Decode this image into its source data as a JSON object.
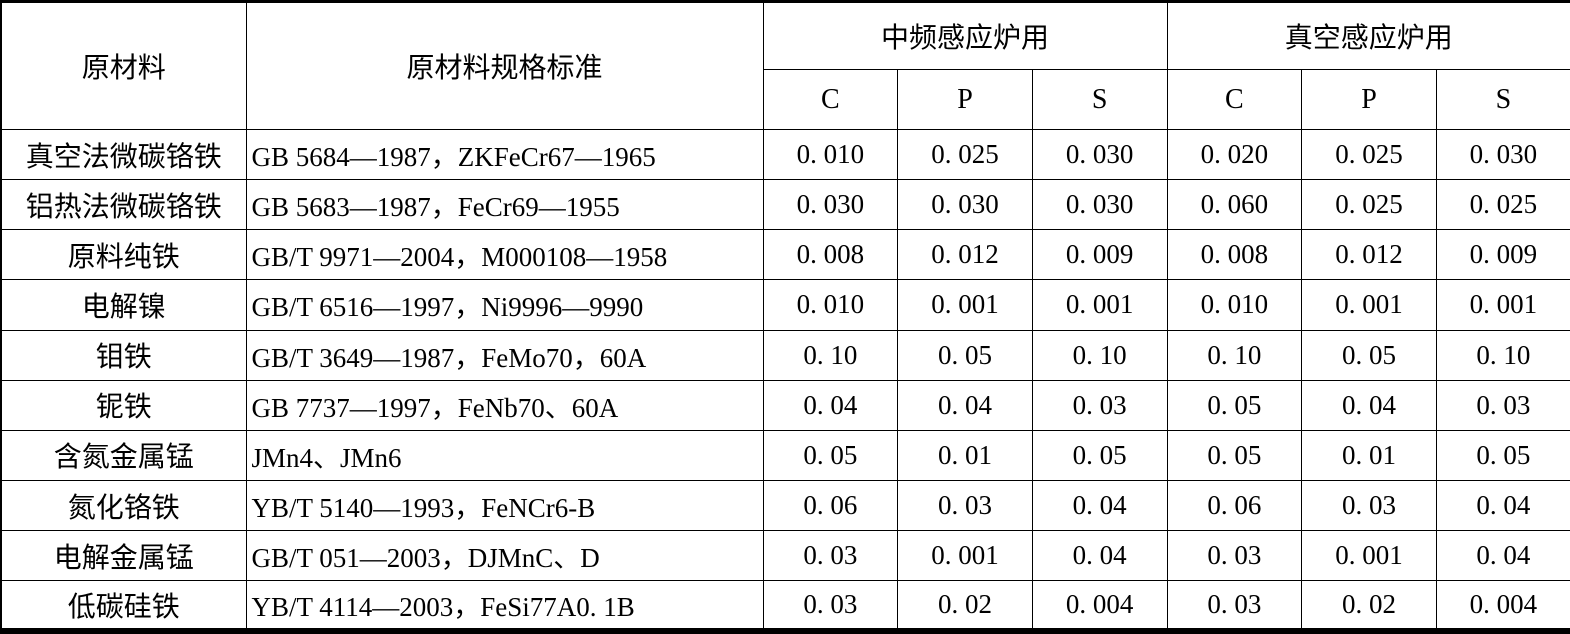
{
  "table": {
    "header": {
      "col_material": "原材料",
      "col_spec": "原材料规格标准",
      "group_mid_freq": "中频感应炉用",
      "group_vacuum": "真空感应炉用",
      "sub_columns": [
        "C",
        "P",
        "S"
      ]
    },
    "rows": [
      {
        "material": "真空法微碳铬铁",
        "spec": "GB 5684—1987，ZKFeCr67—1965",
        "mid": [
          "0. 010",
          "0. 025",
          "0. 030"
        ],
        "vac": [
          "0. 020",
          "0. 025",
          "0. 030"
        ]
      },
      {
        "material": "铝热法微碳铬铁",
        "spec": "GB 5683—1987，FeCr69—1955",
        "mid": [
          "0. 030",
          "0. 030",
          "0. 030"
        ],
        "vac": [
          "0. 060",
          "0. 025",
          "0. 025"
        ]
      },
      {
        "material": "原料纯铁",
        "spec": "GB/T 9971—2004，M000108—1958",
        "mid": [
          "0. 008",
          "0. 012",
          "0. 009"
        ],
        "vac": [
          "0. 008",
          "0. 012",
          "0. 009"
        ]
      },
      {
        "material": "电解镍",
        "spec": "GB/T 6516—1997，Ni9996—9990",
        "mid": [
          "0. 010",
          "0. 001",
          "0. 001"
        ],
        "vac": [
          "0. 010",
          "0. 001",
          "0. 001"
        ]
      },
      {
        "material": "钼铁",
        "spec": "GB/T 3649—1987，FeMo70，60A",
        "mid": [
          "0. 10",
          "0. 05",
          "0. 10"
        ],
        "vac": [
          "0. 10",
          "0. 05",
          "0. 10"
        ]
      },
      {
        "material": "铌铁",
        "spec": "GB 7737—1997，FeNb70、60A",
        "mid": [
          "0. 04",
          "0. 04",
          "0. 03"
        ],
        "vac": [
          "0. 05",
          "0. 04",
          "0. 03"
        ]
      },
      {
        "material": "含氮金属锰",
        "spec": "JMn4、JMn6",
        "mid": [
          "0. 05",
          "0. 01",
          "0. 05"
        ],
        "vac": [
          "0. 05",
          "0. 01",
          "0. 05"
        ]
      },
      {
        "material": "氮化铬铁",
        "spec": "YB/T 5140—1993，FeNCr6-B",
        "mid": [
          "0. 06",
          "0. 03",
          "0. 04"
        ],
        "vac": [
          "0. 06",
          "0. 03",
          "0. 04"
        ]
      },
      {
        "material": "电解金属锰",
        "spec": "GB/T 051—2003，DJMnC、D",
        "mid": [
          "0. 03",
          "0. 001",
          "0. 04"
        ],
        "vac": [
          "0. 03",
          "0. 001",
          "0. 04"
        ]
      },
      {
        "material": "低碳硅铁",
        "spec": "YB/T 4114—2003，FeSi77A0. 1B",
        "mid": [
          "0. 03",
          "0. 02",
          "0. 004"
        ],
        "vac": [
          "0. 03",
          "0. 02",
          "0. 004"
        ]
      }
    ]
  }
}
